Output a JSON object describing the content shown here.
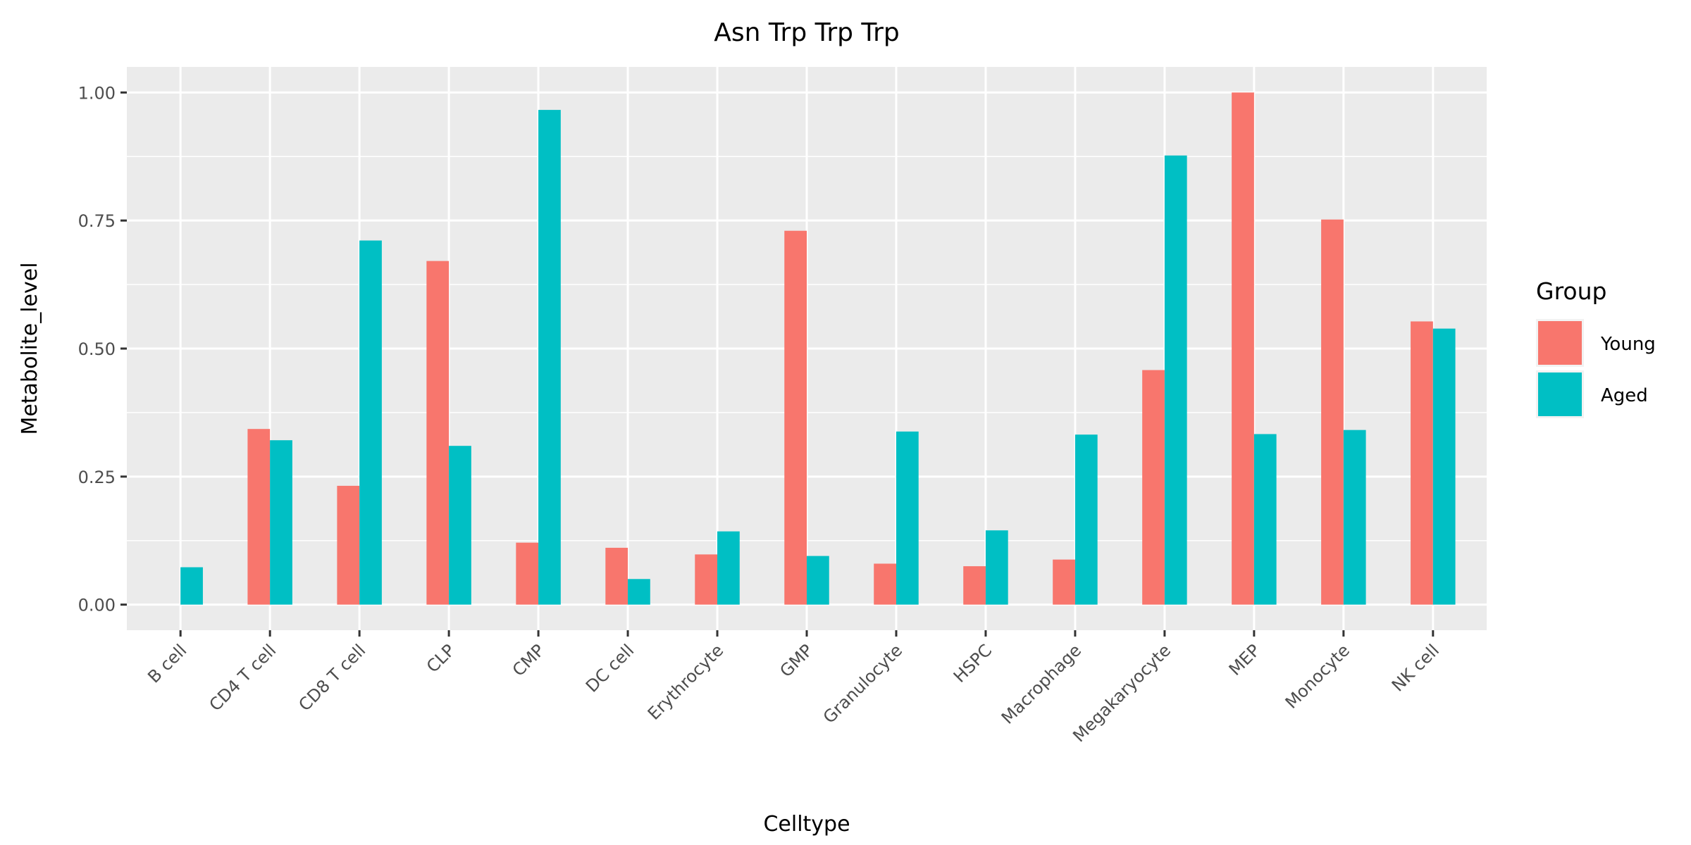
{
  "chart_data": {
    "type": "bar",
    "title": "Asn Trp Trp Trp",
    "xlabel": "Celltype",
    "ylabel": "Metabolite_level",
    "categories": [
      "B cell",
      "CD4 T cell",
      "CD8 T cell",
      "CLP",
      "CMP",
      "DC cell",
      "Erythrocyte",
      "GMP",
      "Granulocyte",
      "HSPC",
      "Macrophage",
      "Megakaryocyte",
      "MEP",
      "Monocyte",
      "NK cell"
    ],
    "series": [
      {
        "name": "Young",
        "color": "#F8766D",
        "values": [
          0.0,
          0.343,
          0.232,
          0.671,
          0.121,
          0.111,
          0.098,
          0.73,
          0.08,
          0.075,
          0.088,
          0.458,
          1.0,
          0.752,
          0.553
        ]
      },
      {
        "name": "Aged",
        "color": "#00BFC4",
        "values": [
          0.073,
          0.321,
          0.711,
          0.31,
          0.966,
          0.05,
          0.143,
          0.095,
          0.338,
          0.145,
          0.332,
          0.877,
          0.333,
          0.341,
          0.539
        ]
      }
    ],
    "yticks": [
      0.0,
      0.25,
      0.5,
      0.75,
      1.0
    ],
    "ytick_labels": [
      "0.00",
      "0.25",
      "0.50",
      "0.75",
      "1.00"
    ],
    "ylim": [
      -0.05,
      1.05
    ],
    "grid": true,
    "legend": {
      "title": "Group",
      "position": "right"
    }
  }
}
